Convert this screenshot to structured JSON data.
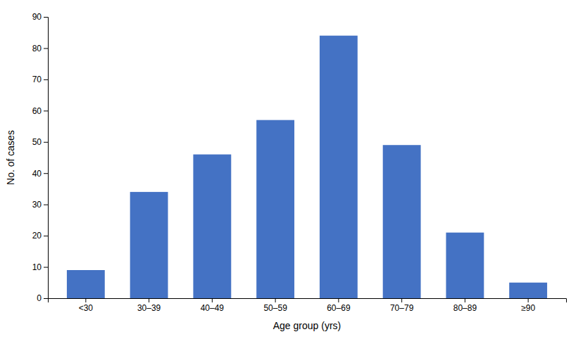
{
  "chart_data": {
    "type": "bar",
    "categories": [
      "<30",
      "30–39",
      "40–49",
      "50–59",
      "60–69",
      "70–79",
      "80–89",
      "≥90"
    ],
    "values": [
      9,
      34,
      46,
      57,
      84,
      49,
      21,
      5
    ],
    "color": "#4472C4",
    "xlabel": "Age group (yrs)",
    "ylabel": "No. of cases",
    "ylim": [
      0,
      90
    ],
    "yticks": [
      0,
      10,
      20,
      30,
      40,
      50,
      60,
      70,
      80,
      90
    ],
    "grid": false
  }
}
